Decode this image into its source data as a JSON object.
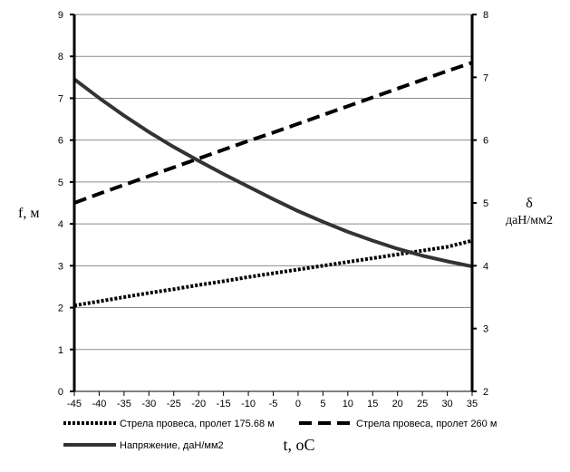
{
  "chart_data": {
    "type": "line",
    "title": "",
    "xlabel": "t, oC",
    "ylabel": "f, м",
    "y2label_symbol": "δ",
    "y2label_unit": "даН/мм2",
    "x": [
      -45,
      -40,
      -35,
      -30,
      -25,
      -20,
      -15,
      -10,
      -5,
      0,
      5,
      10,
      15,
      20,
      25,
      30,
      35
    ],
    "x_ticks": [
      "-45",
      "-40",
      "-35",
      "-30",
      "-25",
      "-20",
      "-15",
      "-10",
      "-5",
      "0",
      "5",
      "10",
      "15",
      "20",
      "25",
      "30",
      "35"
    ],
    "ylim": [
      0,
      9
    ],
    "y_ticks": [
      "0",
      "1",
      "2",
      "3",
      "4",
      "5",
      "6",
      "7",
      "8",
      "9"
    ],
    "y2lim": [
      2,
      8
    ],
    "y2_ticks": [
      "2",
      "3",
      "4",
      "5",
      "6",
      "7",
      "8"
    ],
    "grid": true,
    "legend_position": "bottom",
    "series": [
      {
        "name": "Стрела провеса, пролет 175.68 м",
        "axis": "left",
        "style": "dotted",
        "values": [
          2.05,
          2.15,
          2.25,
          2.35,
          2.44,
          2.54,
          2.63,
          2.73,
          2.82,
          2.91,
          3.0,
          3.09,
          3.18,
          3.27,
          3.36,
          3.45,
          3.6
        ]
      },
      {
        "name": "Стрела провеса, пролет 260 м",
        "axis": "left",
        "style": "dashed",
        "values": [
          4.5,
          4.72,
          4.93,
          5.14,
          5.35,
          5.56,
          5.77,
          5.98,
          6.18,
          6.39,
          6.6,
          6.81,
          7.02,
          7.23,
          7.44,
          7.65,
          7.85
        ]
      },
      {
        "name": "Напряжение, даН/мм2",
        "axis": "right",
        "style": "solid",
        "values": [
          6.97,
          6.67,
          6.39,
          6.13,
          5.89,
          5.67,
          5.46,
          5.26,
          5.06,
          4.87,
          4.7,
          4.54,
          4.4,
          4.27,
          4.16,
          4.07,
          3.99
        ]
      }
    ]
  }
}
